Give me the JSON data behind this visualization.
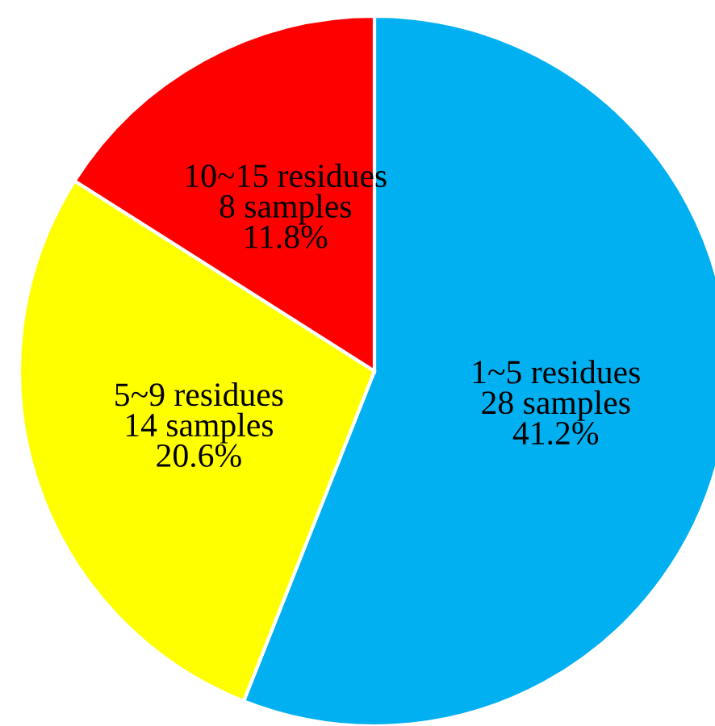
{
  "chart_data": {
    "type": "pie",
    "categories": [
      "1~5 residues",
      "5~9 residues",
      "10~15 residues"
    ],
    "values": [
      28,
      14,
      8
    ],
    "value_labels": [
      "28 samples\n41.2%",
      "14 samples\n20.6%",
      "8 samples\n11.8%"
    ],
    "colors": [
      "#00b0f0",
      "#ffff00",
      "#ff0000"
    ]
  }
}
